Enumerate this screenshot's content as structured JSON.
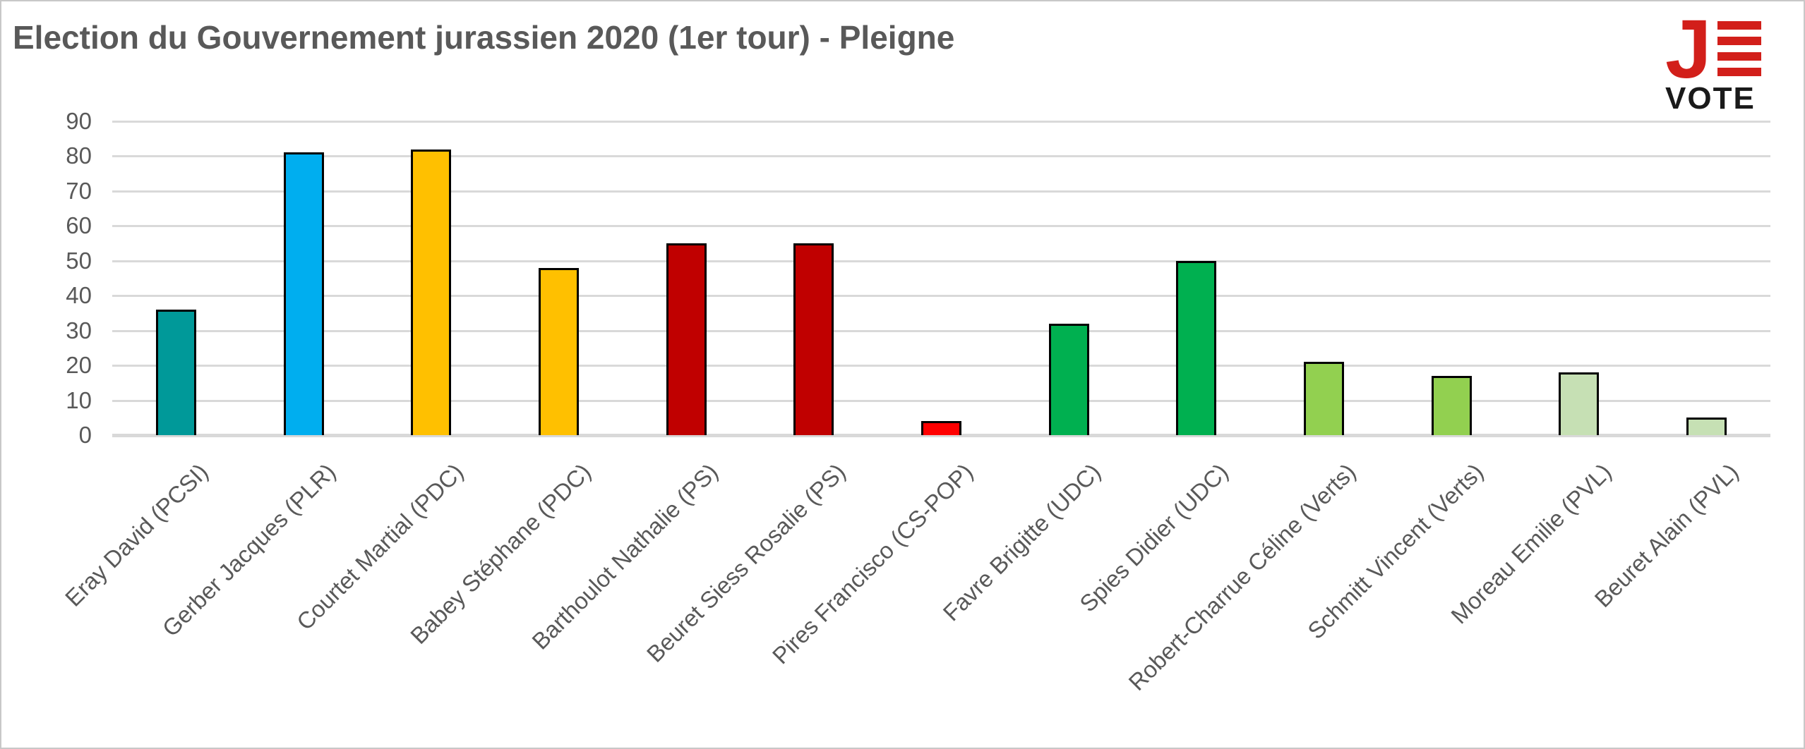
{
  "header": {
    "title": "Election du Gouvernement jurassien 2020 (1er tour) - Pleigne",
    "logo": {
      "j_text": "J",
      "vote_text": "VOTE",
      "stripe_count": 4,
      "red": "#d21f1a",
      "black": "#1a1a1a"
    }
  },
  "chart_data": {
    "type": "bar",
    "title": "Election du Gouvernement jurassien 2020 (1er tour) - Pleigne",
    "categories": [
      "Eray David (PCSI)",
      "Gerber Jacques (PLR)",
      "Courtet Martial (PDC)",
      "Babey Stéphane (PDC)",
      "Barthoulot Nathalie (PS)",
      "Beuret Siess Rosalie (PS)",
      "Pires Francisco (CS-POP)",
      "Favre Brigitte (UDC)",
      "Spies Didier (UDC)",
      "Robert-Charrue Céline (Verts)",
      "Schmitt Vincent (Verts)",
      "Moreau Emilie (PVL)",
      "Beuret Alain (PVL)"
    ],
    "values": [
      36,
      81,
      82,
      48,
      55,
      55,
      4,
      32,
      50,
      21,
      17,
      18,
      5
    ],
    "bar_colors": [
      "#009999",
      "#00aeef",
      "#ffc000",
      "#ffc000",
      "#c00000",
      "#c00000",
      "#ff0000",
      "#00b050",
      "#00b050",
      "#92d050",
      "#92d050",
      "#c6e0b4",
      "#c6e0b4"
    ],
    "xlabel": "",
    "ylabel": "",
    "ylim": [
      0,
      90
    ],
    "yticks": [
      0,
      10,
      20,
      30,
      40,
      50,
      60,
      70,
      80,
      90
    ],
    "grid": true,
    "legend": false,
    "bar_outline_color": "#000000",
    "grid_color": "#d9d9d9",
    "text_color": "#595959"
  }
}
